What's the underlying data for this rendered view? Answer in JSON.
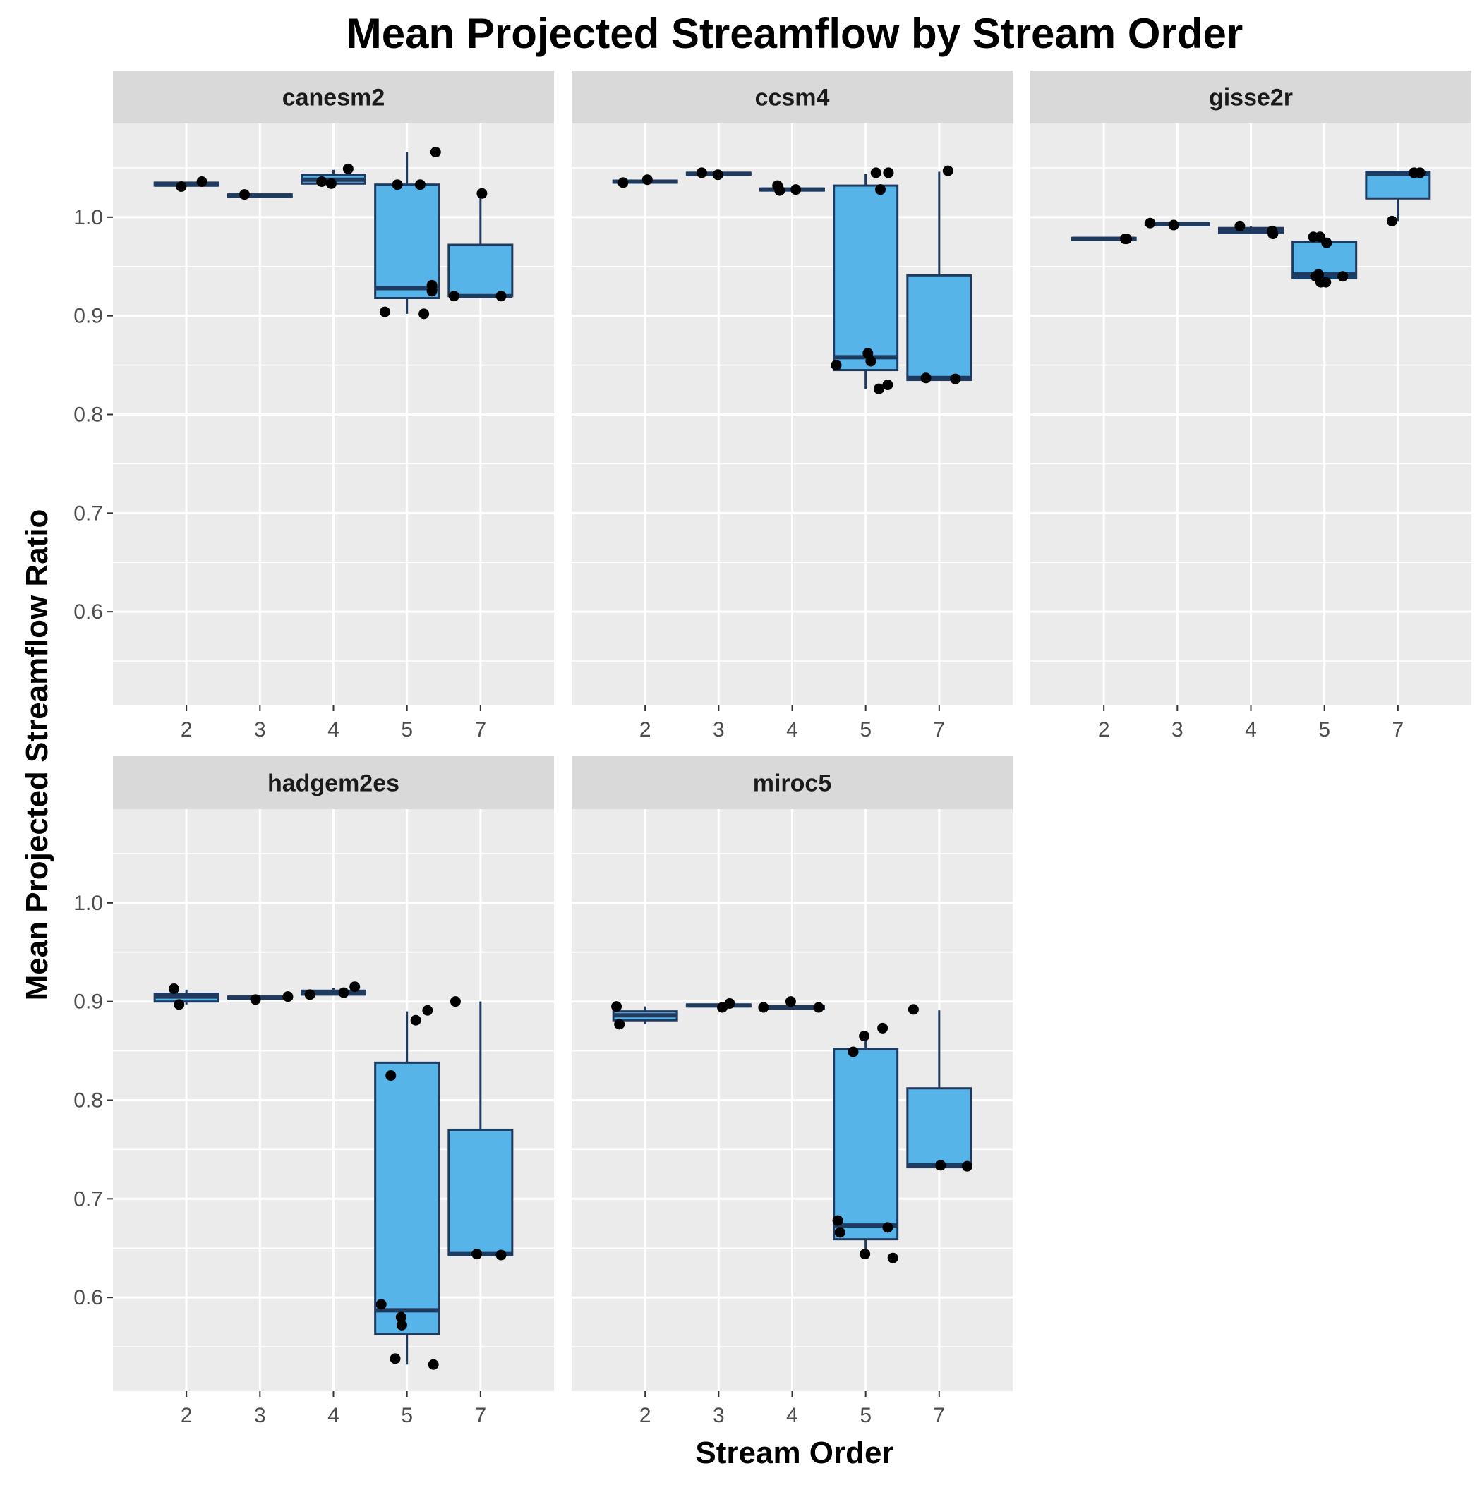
{
  "chart_data": {
    "type": "boxplot",
    "title": "Mean Projected Streamflow by Stream Order",
    "xlabel": "Stream Order",
    "ylabel": "Mean Projected Streamflow Ratio",
    "categories": [
      "2",
      "3",
      "4",
      "5",
      "7"
    ],
    "y_ticks": [
      0.6,
      0.7,
      0.8,
      0.9,
      1.0
    ],
    "y_tick_labels": [
      "0.6",
      "0.7",
      "0.8",
      "0.9",
      "1.0"
    ],
    "ylim": [
      0.505,
      1.095
    ],
    "fill_color": "#56B4E9",
    "outline_color": "#1f3a5f",
    "point_color": "#000000",
    "panel_bg": "#ebebeb",
    "strip_bg": "#d9d9d9",
    "panels": [
      {
        "model": "canesm2",
        "boxes": [
          {
            "order": "2",
            "q1": 1.032,
            "median": 1.033,
            "q3": 1.035,
            "whisker_low": 1.031,
            "whisker_high": 1.036,
            "points": [
              [
                -0.07,
                1.031
              ],
              [
                0.21,
                1.036
              ]
            ]
          },
          {
            "order": "3",
            "q1": 1.021,
            "median": 1.022,
            "q3": 1.023,
            "whisker_low": 1.021,
            "whisker_high": 1.023,
            "points": [
              [
                -0.21,
                1.023
              ]
            ]
          },
          {
            "order": "4",
            "q1": 1.034,
            "median": 1.038,
            "q3": 1.043,
            "whisker_low": 1.034,
            "whisker_high": 1.048,
            "points": [
              [
                -0.16,
                1.036
              ],
              [
                -0.03,
                1.034
              ],
              [
                0.2,
                1.049
              ]
            ]
          },
          {
            "order": "5",
            "q1": 0.918,
            "median": 0.928,
            "q3": 1.033,
            "whisker_low": 0.902,
            "whisker_high": 1.066,
            "points": [
              [
                -0.3,
                0.904
              ],
              [
                -0.13,
                1.033
              ],
              [
                0.18,
                1.033
              ],
              [
                0.23,
                0.902
              ],
              [
                0.34,
                0.931
              ],
              [
                0.34,
                0.925
              ],
              [
                0.39,
                1.066
              ]
            ]
          },
          {
            "order": "7",
            "q1": 0.92,
            "median": 0.92,
            "q3": 0.972,
            "whisker_low": 0.92,
            "whisker_high": 1.023,
            "points": [
              [
                -0.36,
                0.92
              ],
              [
                0.02,
                1.024
              ],
              [
                0.28,
                0.92
              ]
            ]
          }
        ]
      },
      {
        "model": "ccsm4",
        "boxes": [
          {
            "order": "2",
            "q1": 1.035,
            "median": 1.036,
            "q3": 1.037,
            "whisker_low": 1.035,
            "whisker_high": 1.037,
            "points": [
              [
                -0.3,
                1.035
              ],
              [
                0.03,
                1.038
              ]
            ]
          },
          {
            "order": "3",
            "q1": 1.043,
            "median": 1.044,
            "q3": 1.045,
            "whisker_low": 1.043,
            "whisker_high": 1.045,
            "points": [
              [
                -0.23,
                1.045
              ],
              [
                -0.01,
                1.043
              ]
            ]
          },
          {
            "order": "4",
            "q1": 1.027,
            "median": 1.028,
            "q3": 1.029,
            "whisker_low": 1.027,
            "whisker_high": 1.029,
            "points": [
              [
                -0.2,
                1.032
              ],
              [
                -0.17,
                1.027
              ],
              [
                0.05,
                1.028
              ]
            ]
          },
          {
            "order": "5",
            "q1": 0.845,
            "median": 0.858,
            "q3": 1.032,
            "whisker_low": 0.826,
            "whisker_high": 1.044,
            "points": [
              [
                -0.4,
                0.85
              ],
              [
                0.03,
                0.862
              ],
              [
                0.07,
                0.854
              ],
              [
                0.14,
                1.045
              ],
              [
                0.18,
                0.826
              ],
              [
                0.2,
                1.028
              ],
              [
                0.3,
                0.83
              ],
              [
                0.31,
                1.045
              ]
            ]
          },
          {
            "order": "7",
            "q1": 0.835,
            "median": 0.837,
            "q3": 0.941,
            "whisker_low": 0.835,
            "whisker_high": 1.046,
            "points": [
              [
                -0.18,
                0.837
              ],
              [
                0.12,
                1.047
              ],
              [
                0.22,
                0.836
              ]
            ]
          }
        ]
      },
      {
        "model": "gisse2r",
        "boxes": [
          {
            "order": "2",
            "q1": 0.977,
            "median": 0.978,
            "q3": 0.979,
            "whisker_low": 0.977,
            "whisker_high": 0.979,
            "points": [
              [
                0.29,
                0.978
              ],
              [
                0.31,
                0.978
              ]
            ]
          },
          {
            "order": "3",
            "q1": 0.992,
            "median": 0.993,
            "q3": 0.994,
            "whisker_low": 0.992,
            "whisker_high": 0.994,
            "points": [
              [
                -0.37,
                0.994
              ],
              [
                -0.05,
                0.992
              ]
            ]
          },
          {
            "order": "4",
            "q1": 0.984,
            "median": 0.986,
            "q3": 0.989,
            "whisker_low": 0.984,
            "whisker_high": 0.991,
            "points": [
              [
                -0.15,
                0.991
              ],
              [
                0.29,
                0.986
              ],
              [
                0.3,
                0.983
              ]
            ]
          },
          {
            "order": "5",
            "q1": 0.938,
            "median": 0.942,
            "q3": 0.975,
            "whisker_low": 0.934,
            "whisker_high": 0.98,
            "points": [
              [
                -0.12,
                0.94
              ],
              [
                -0.05,
                0.934
              ],
              [
                -0.15,
                0.98
              ],
              [
                -0.06,
                0.98
              ],
              [
                -0.08,
                0.942
              ],
              [
                0.02,
                0.934
              ],
              [
                0.03,
                0.974
              ],
              [
                0.25,
                0.94
              ]
            ]
          },
          {
            "order": "7",
            "q1": 1.019,
            "median": 1.044,
            "q3": 1.046,
            "whisker_low": 0.996,
            "whisker_high": 1.046,
            "points": [
              [
                -0.08,
                0.996
              ],
              [
                0.22,
                1.045
              ],
              [
                0.3,
                1.045
              ]
            ]
          }
        ]
      },
      {
        "model": "hadgem2es",
        "boxes": [
          {
            "order": "2",
            "q1": 0.9,
            "median": 0.905,
            "q3": 0.908,
            "whisker_low": 0.897,
            "whisker_high": 0.912,
            "points": [
              [
                -0.17,
                0.913
              ],
              [
                -0.1,
                0.897
              ]
            ]
          },
          {
            "order": "3",
            "q1": 0.903,
            "median": 0.904,
            "q3": 0.905,
            "whisker_low": 0.903,
            "whisker_high": 0.905,
            "points": [
              [
                -0.06,
                0.902
              ],
              [
                0.38,
                0.905
              ]
            ]
          },
          {
            "order": "4",
            "q1": 0.907,
            "median": 0.909,
            "q3": 0.911,
            "whisker_low": 0.907,
            "whisker_high": 0.914,
            "points": [
              [
                -0.32,
                0.907
              ],
              [
                0.14,
                0.909
              ],
              [
                0.29,
                0.915
              ]
            ]
          },
          {
            "order": "5",
            "q1": 0.563,
            "median": 0.587,
            "q3": 0.838,
            "whisker_low": 0.532,
            "whisker_high": 0.89,
            "points": [
              [
                -0.35,
                0.593
              ],
              [
                -0.22,
                0.825
              ],
              [
                -0.16,
                0.538
              ],
              [
                -0.08,
                0.58
              ],
              [
                -0.07,
                0.572
              ],
              [
                0.12,
                0.881
              ],
              [
                0.28,
                0.891
              ],
              [
                0.36,
                0.532
              ]
            ]
          },
          {
            "order": "7",
            "q1": 0.643,
            "median": 0.644,
            "q3": 0.77,
            "whisker_low": 0.643,
            "whisker_high": 0.9,
            "points": [
              [
                -0.34,
                0.9
              ],
              [
                -0.05,
                0.644
              ],
              [
                0.28,
                0.643
              ]
            ]
          }
        ]
      },
      {
        "model": "miroc5",
        "boxes": [
          {
            "order": "2",
            "q1": 0.881,
            "median": 0.886,
            "q3": 0.89,
            "whisker_low": 0.877,
            "whisker_high": 0.895,
            "points": [
              [
                -0.39,
                0.895
              ],
              [
                -0.35,
                0.877
              ]
            ]
          },
          {
            "order": "3",
            "q1": 0.895,
            "median": 0.896,
            "q3": 0.897,
            "whisker_low": 0.895,
            "whisker_high": 0.897,
            "points": [
              [
                0.05,
                0.894
              ],
              [
                0.15,
                0.898
              ]
            ]
          },
          {
            "order": "4",
            "q1": 0.893,
            "median": 0.894,
            "q3": 0.895,
            "whisker_low": 0.893,
            "whisker_high": 0.895,
            "points": [
              [
                -0.39,
                0.894
              ],
              [
                -0.02,
                0.9
              ],
              [
                0.36,
                0.894
              ]
            ]
          },
          {
            "order": "5",
            "q1": 0.659,
            "median": 0.673,
            "q3": 0.852,
            "whisker_low": 0.643,
            "whisker_high": 0.865,
            "points": [
              [
                -0.38,
                0.678
              ],
              [
                -0.35,
                0.666
              ],
              [
                -0.17,
                0.849
              ],
              [
                -0.02,
                0.865
              ],
              [
                -0.01,
                0.644
              ],
              [
                0.23,
                0.873
              ],
              [
                0.3,
                0.671
              ],
              [
                0.37,
                0.64
              ]
            ]
          },
          {
            "order": "7",
            "q1": 0.732,
            "median": 0.734,
            "q3": 0.812,
            "whisker_low": 0.732,
            "whisker_high": 0.891,
            "points": [
              [
                -0.35,
                0.892
              ],
              [
                0.02,
                0.734
              ],
              [
                0.38,
                0.733
              ]
            ]
          }
        ]
      }
    ]
  }
}
